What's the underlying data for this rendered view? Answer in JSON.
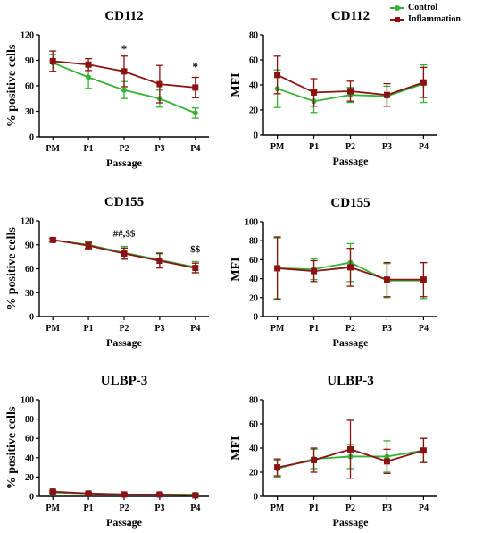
{
  "legend": {
    "control_label": "Control",
    "inflammation_label": "Inflammation"
  },
  "colors": {
    "control": "#33b233",
    "inflammation": "#8b1212"
  },
  "chart_data": [
    {
      "type": "line",
      "title": "CD112",
      "xlabel": "Passage",
      "ylabel": "% positive cells",
      "categories": [
        "PM",
        "P1",
        "P2",
        "P3",
        "P4"
      ],
      "ylim": [
        0,
        120
      ],
      "yticks": [
        0,
        30,
        60,
        90,
        120
      ],
      "series": [
        {
          "name": "Control",
          "values": [
            87,
            70,
            55,
            45,
            28
          ],
          "errors": [
            10,
            13,
            10,
            10,
            6
          ]
        },
        {
          "name": "Inflammation",
          "values": [
            89,
            85,
            77,
            62,
            58
          ],
          "errors": [
            12,
            7,
            18,
            22,
            12
          ]
        }
      ],
      "annotations": [
        {
          "category": "P2",
          "y": 103,
          "text": "*"
        },
        {
          "category": "P4",
          "y": 82,
          "text": "*"
        }
      ]
    },
    {
      "type": "line",
      "title": "CD112",
      "xlabel": "Passage",
      "ylabel": "MFI",
      "categories": [
        "PM",
        "P1",
        "P2",
        "P3",
        "P4"
      ],
      "ylim": [
        0,
        80
      ],
      "yticks": [
        0,
        20,
        40,
        60,
        80
      ],
      "series": [
        {
          "name": "Control",
          "values": [
            37,
            27,
            32,
            31,
            41
          ],
          "errors": [
            15,
            9,
            6,
            8,
            15
          ]
        },
        {
          "name": "Inflammation",
          "values": [
            48,
            34,
            35,
            32,
            42
          ],
          "errors": [
            15,
            11,
            8,
            9,
            12
          ]
        }
      ],
      "annotations": []
    },
    {
      "type": "line",
      "title": "CD155",
      "xlabel": "Passage",
      "ylabel": "% positive cells",
      "categories": [
        "PM",
        "P1",
        "P2",
        "P3",
        "P4"
      ],
      "ylim": [
        0,
        120
      ],
      "yticks": [
        0,
        30,
        60,
        90,
        120
      ],
      "series": [
        {
          "name": "Control",
          "values": [
            96,
            90,
            80,
            71,
            62
          ],
          "errors": [
            2,
            4,
            8,
            9,
            7
          ]
        },
        {
          "name": "Inflammation",
          "values": [
            96,
            89,
            79,
            70,
            61
          ],
          "errors": [
            2,
            4,
            7,
            9,
            6
          ]
        }
      ],
      "annotations": [
        {
          "category": "P2",
          "y": 105,
          "text": "##,$$"
        },
        {
          "category": "P4",
          "y": 85,
          "text": "$$"
        }
      ]
    },
    {
      "type": "line",
      "title": "CD155",
      "xlabel": "Passage",
      "ylabel": "MFI",
      "categories": [
        "PM",
        "P1",
        "P2",
        "P3",
        "P4"
      ],
      "ylim": [
        0,
        100
      ],
      "yticks": [
        0,
        20,
        40,
        60,
        80,
        100
      ],
      "series": [
        {
          "name": "Control",
          "values": [
            51,
            50,
            57,
            38,
            38
          ],
          "errors": [
            32,
            11,
            20,
            18,
            19
          ]
        },
        {
          "name": "Inflammation",
          "values": [
            51,
            48,
            52,
            39,
            39
          ],
          "errors": [
            33,
            11,
            20,
            18,
            18
          ]
        }
      ],
      "annotations": []
    },
    {
      "type": "line",
      "title": "ULBP-3",
      "xlabel": "Passage",
      "ylabel": "% positive cells",
      "categories": [
        "PM",
        "P1",
        "P2",
        "P3",
        "P4"
      ],
      "ylim": [
        0,
        100
      ],
      "yticks": [
        0,
        20,
        40,
        60,
        80,
        100
      ],
      "series": [
        {
          "name": "Control",
          "values": [
            4,
            3,
            2,
            2,
            2
          ],
          "errors": [
            1,
            1,
            1,
            1,
            1
          ]
        },
        {
          "name": "Inflammation",
          "values": [
            5,
            3,
            2,
            2,
            1
          ],
          "errors": [
            1,
            1,
            1,
            1,
            1
          ]
        }
      ],
      "annotations": []
    },
    {
      "type": "line",
      "title": "ULBP-3",
      "xlabel": "Passage",
      "ylabel": "MFI",
      "categories": [
        "PM",
        "P1",
        "P2",
        "P3",
        "P4"
      ],
      "ylim": [
        0,
        80
      ],
      "yticks": [
        0,
        20,
        40,
        60,
        80
      ],
      "series": [
        {
          "name": "Control",
          "values": [
            23,
            31,
            33,
            33,
            38
          ],
          "errors": [
            7,
            8,
            10,
            13,
            10
          ]
        },
        {
          "name": "Inflammation",
          "values": [
            24,
            30,
            39,
            29,
            38
          ],
          "errors": [
            7,
            10,
            24,
            10,
            10
          ]
        }
      ],
      "annotations": []
    }
  ]
}
